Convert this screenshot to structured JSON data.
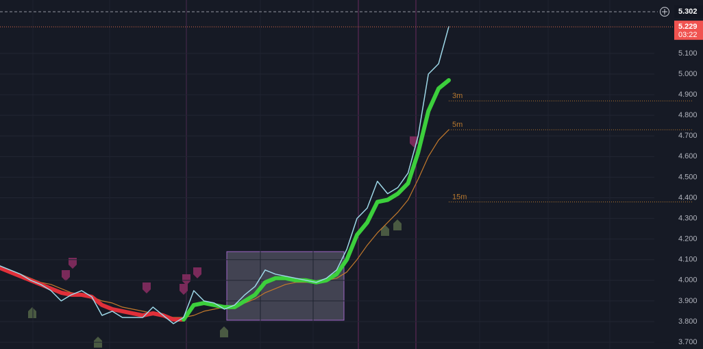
{
  "chart_data": {
    "type": "line",
    "ylim": [
      3.667,
      5.359
    ],
    "yticks": [
      {
        "value": 3.7,
        "label": "3.700"
      },
      {
        "value": 3.8,
        "label": "3.800"
      },
      {
        "value": 3.9,
        "label": "3.900"
      },
      {
        "value": 4.0,
        "label": "4.000"
      },
      {
        "value": 4.1,
        "label": "4.100"
      },
      {
        "value": 4.2,
        "label": "4.200"
      },
      {
        "value": 4.3,
        "label": "4.300"
      },
      {
        "value": 4.4,
        "label": "4.400"
      },
      {
        "value": 4.5,
        "label": "4.500"
      },
      {
        "value": 4.6,
        "label": "4.600"
      },
      {
        "value": 4.7,
        "label": "4.700"
      },
      {
        "value": 4.8,
        "label": "4.800"
      },
      {
        "value": 4.9,
        "label": "4.900"
      },
      {
        "value": 5.0,
        "label": "5.000"
      },
      {
        "value": 5.1,
        "label": "5.100"
      }
    ],
    "grid": true,
    "series": [
      {
        "color": "#9ed8e8",
        "width": 1.5,
        "values": [
          4.07,
          4.05,
          4.03,
          4.0,
          3.98,
          3.95,
          3.9,
          3.93,
          3.95,
          3.92,
          3.83,
          3.85,
          3.82,
          3.82,
          3.82,
          3.87,
          3.83,
          3.79,
          3.82,
          3.95,
          3.9,
          3.89,
          3.86,
          3.88,
          3.93,
          3.97,
          4.05,
          4.03,
          4.02,
          4.01,
          4.0,
          3.99,
          4.01,
          4.05,
          4.15,
          4.3,
          4.35,
          4.48,
          4.42,
          4.45,
          4.52,
          4.7,
          5.0,
          5.05,
          5.23
        ]
      },
      {
        "color": "#e0303a",
        "width": 6,
        "values": [
          4.06,
          4.04,
          4.02,
          4.0,
          3.98,
          3.96,
          3.94,
          3.93,
          3.93,
          3.92,
          3.88,
          3.86,
          3.85,
          3.84,
          3.83,
          3.84,
          3.83,
          3.81,
          3.81,
          null,
          null,
          null,
          null,
          null,
          null,
          null,
          null,
          null,
          null,
          null,
          null,
          null,
          null,
          null,
          null,
          null,
          null,
          null,
          null,
          null,
          null,
          null,
          null,
          null,
          null
        ]
      },
      {
        "color": "#3ccf3c",
        "width": 6,
        "values": [
          null,
          null,
          null,
          null,
          null,
          null,
          null,
          null,
          null,
          null,
          null,
          null,
          null,
          null,
          null,
          null,
          null,
          null,
          3.81,
          3.88,
          3.89,
          3.88,
          3.87,
          3.87,
          3.9,
          3.93,
          3.99,
          4.01,
          4.01,
          4.0,
          4.0,
          3.99,
          4.0,
          4.03,
          4.1,
          4.22,
          4.28,
          4.38,
          4.39,
          4.42,
          4.47,
          4.62,
          4.82,
          4.93,
          4.97
        ]
      },
      {
        "color": "#c47a2c",
        "width": 1.2,
        "values": [
          4.07,
          4.05,
          4.03,
          4.01,
          3.99,
          3.98,
          3.96,
          3.94,
          3.93,
          3.92,
          3.9,
          3.89,
          3.87,
          3.86,
          3.85,
          3.84,
          3.83,
          3.82,
          3.82,
          3.83,
          3.85,
          3.86,
          3.87,
          3.88,
          3.89,
          3.91,
          3.94,
          3.96,
          3.98,
          3.99,
          3.99,
          3.99,
          4.0,
          4.01,
          4.04,
          4.1,
          4.17,
          4.23,
          4.28,
          4.33,
          4.39,
          4.49,
          4.6,
          4.68,
          4.73
        ]
      }
    ],
    "levels": [
      {
        "label": "3m",
        "value": 4.87
      },
      {
        "label": "5m",
        "value": 4.73
      },
      {
        "label": "15m",
        "value": 4.38
      }
    ],
    "crosshair": {
      "value": 5.302,
      "label": "5.302"
    },
    "last_price": {
      "value": 5.229,
      "label": "5.229",
      "countdown": "03:22"
    }
  }
}
